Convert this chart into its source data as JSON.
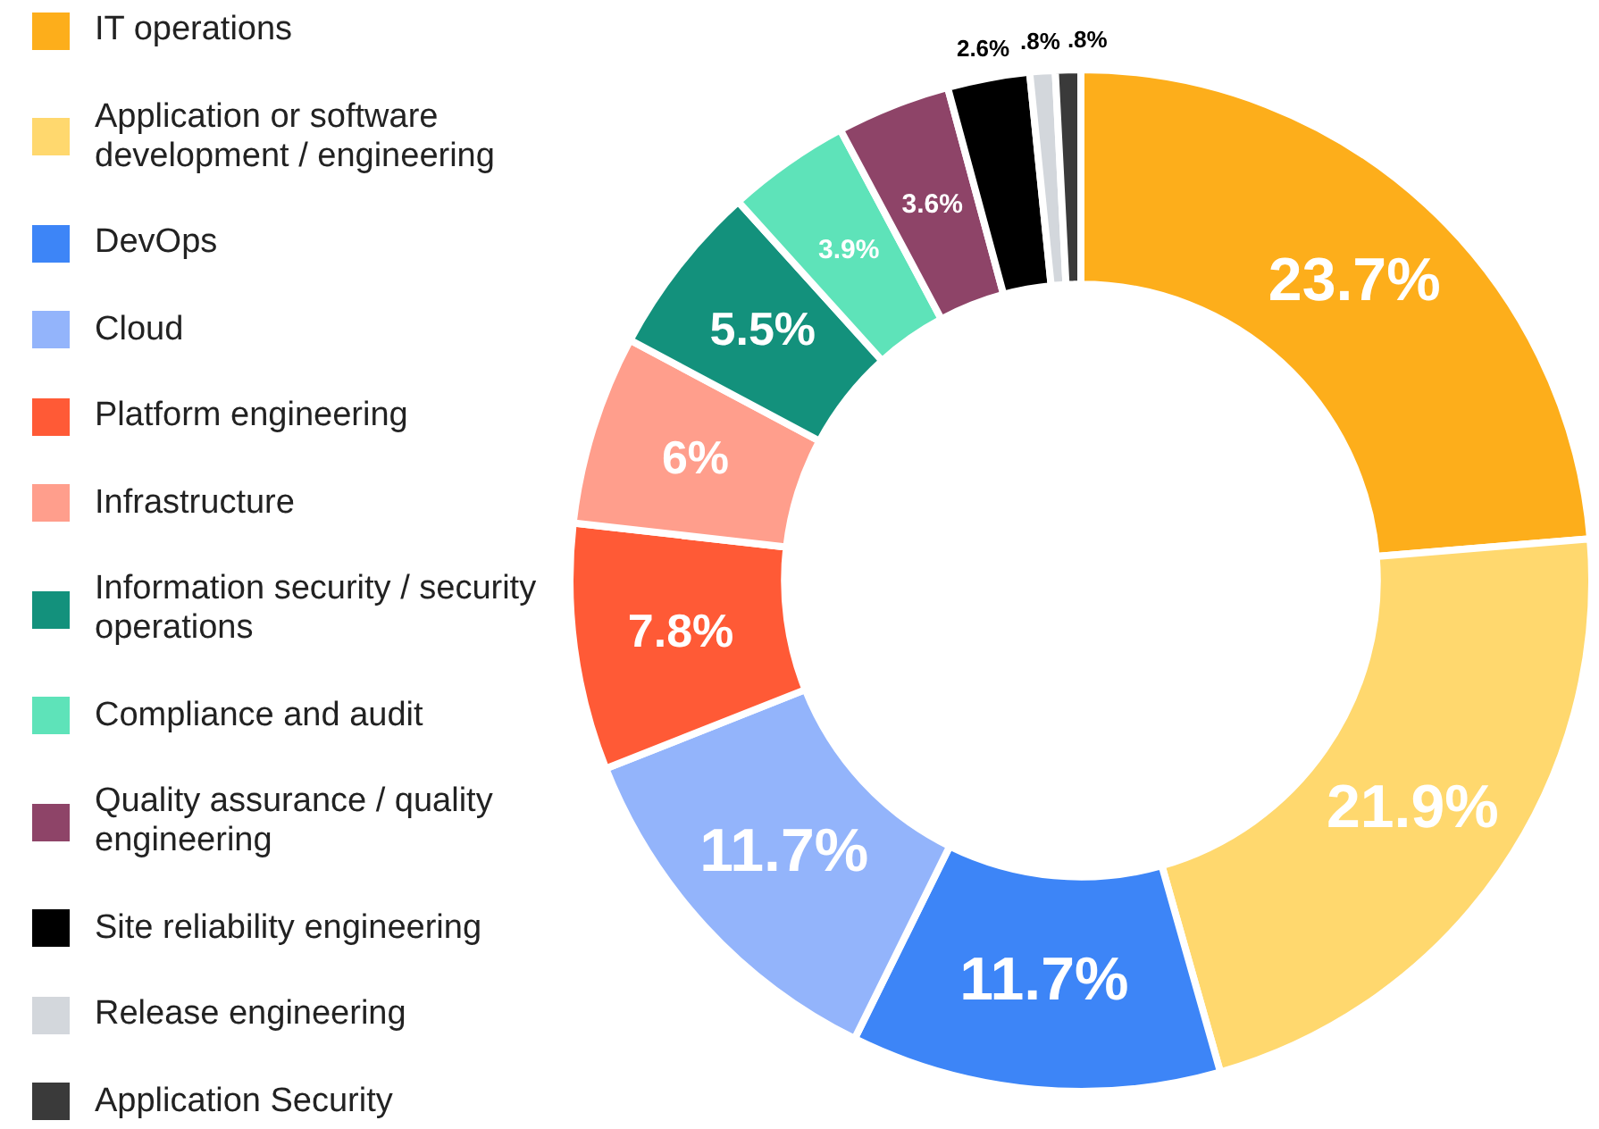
{
  "chart_data": {
    "type": "donut",
    "categories": [
      "IT operations",
      "Application or software development / engineering",
      "DevOps",
      "Cloud",
      "Platform engineering",
      "Infrastructure",
      "Information security / security operations",
      "Compliance and audit",
      "Quality assurance / quality engineering",
      "Site reliability engineering",
      "Release engineering",
      "Application Security"
    ],
    "values": [
      23.7,
      21.9,
      11.7,
      11.7,
      7.8,
      6,
      5.5,
      3.9,
      3.6,
      2.6,
      0.8,
      0.8
    ],
    "value_labels": [
      "23.7%",
      "21.9%",
      "11.7%",
      "11.7%",
      "7.8%",
      "6%",
      "5.5%",
      "3.9%",
      "3.6%",
      "2.6%",
      ".8%",
      ".8%"
    ],
    "colors": [
      "#fdae1b",
      "#ffd86e",
      "#3d85f7",
      "#93b4fb",
      "#ff5a36",
      "#ff9e8c",
      "#13917c",
      "#5ee3b9",
      "#8e4468",
      "#000000",
      "#d3d7dc",
      "#3a3a3a"
    ],
    "legend": "left"
  }
}
